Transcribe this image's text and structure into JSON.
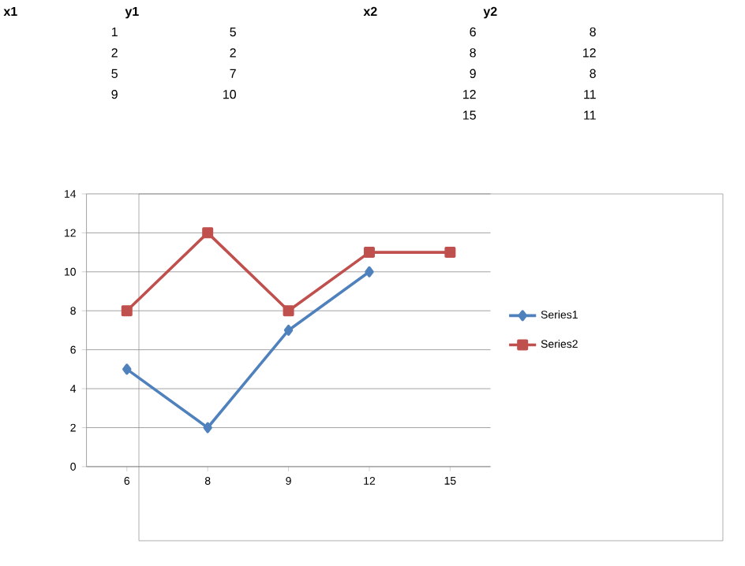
{
  "chart_data": {
    "type": "line",
    "categories": [
      "6",
      "8",
      "9",
      "12",
      "15"
    ],
    "series": [
      {
        "name": "Series1",
        "color": "#4f81bd",
        "marker": "diamond",
        "values": [
          5,
          2,
          7,
          10,
          null
        ]
      },
      {
        "name": "Series2",
        "color": "#c0504d",
        "marker": "square",
        "values": [
          8,
          12,
          8,
          11,
          11
        ]
      }
    ],
    "ylim": [
      0,
      14
    ],
    "yticks": [
      0,
      2,
      4,
      6,
      8,
      10,
      12,
      14
    ],
    "grid": "y",
    "legend": "right",
    "line_style": "solid",
    "annotations": [
      "x1",
      "y1",
      "x2",
      "y2",
      "1",
      "5",
      "6",
      "8",
      "2",
      "2",
      "8",
      "12",
      "5",
      "7",
      "9",
      "8",
      "9",
      "10",
      "12",
      "11",
      "15",
      "11"
    ]
  }
}
